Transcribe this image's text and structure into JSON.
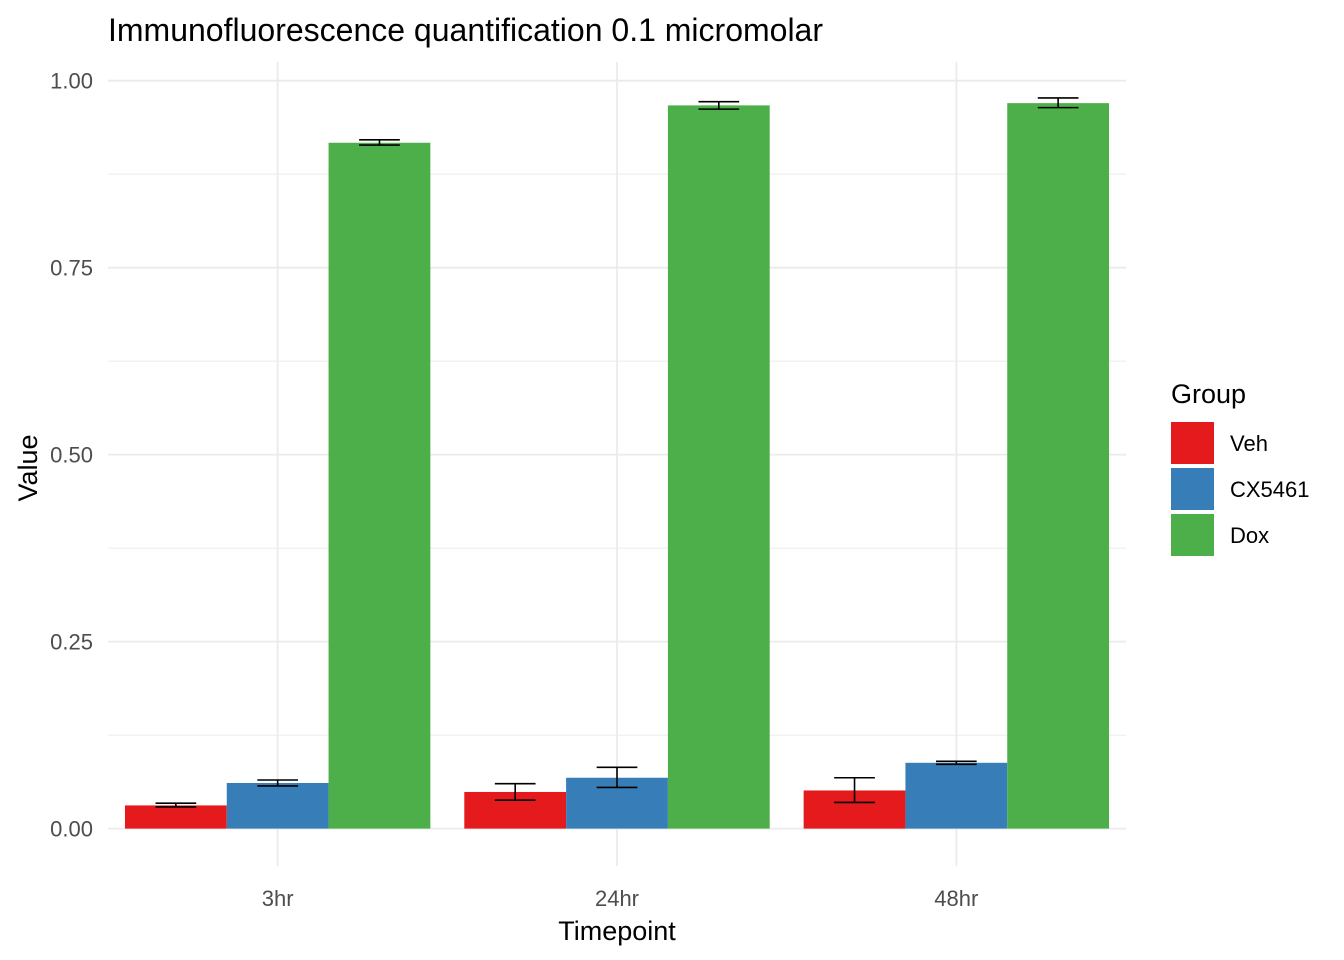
{
  "chart_data": {
    "type": "bar",
    "title": "Immunofluorescence quantification 0.1 micromolar",
    "xlabel": "Timepoint",
    "ylabel": "Value",
    "categories": [
      "3hr",
      "24hr",
      "48hr"
    ],
    "ylim": [
      -0.05,
      1.025
    ],
    "yticks": [
      0.0,
      0.25,
      0.5,
      0.75,
      1.0
    ],
    "ytick_labels": [
      "0.00",
      "0.25",
      "0.50",
      "0.75",
      "1.00"
    ],
    "grid": true,
    "legend": {
      "title": "Group",
      "position": "right"
    },
    "series": [
      {
        "name": "Veh",
        "color": "#E41A1C",
        "values": [
          0.031,
          0.049,
          0.051
        ],
        "err_low": [
          0.029,
          0.038,
          0.035
        ],
        "err_high": [
          0.034,
          0.06,
          0.068
        ]
      },
      {
        "name": "CX5461",
        "color": "#377EB8",
        "values": [
          0.061,
          0.068,
          0.088
        ],
        "err_low": [
          0.057,
          0.055,
          0.086
        ],
        "err_high": [
          0.065,
          0.082,
          0.09
        ]
      },
      {
        "name": "Dox",
        "color": "#4DAF4A",
        "values": [
          0.917,
          0.967,
          0.97
        ],
        "err_low": [
          0.914,
          0.962,
          0.964
        ],
        "err_high": [
          0.921,
          0.972,
          0.977
        ]
      }
    ]
  }
}
